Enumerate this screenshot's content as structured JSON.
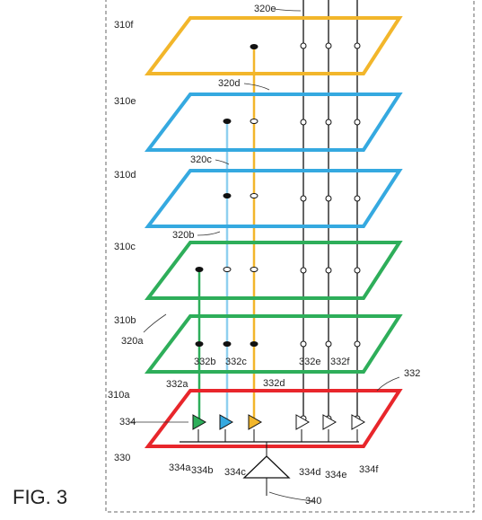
{
  "figure_label": "FIG. 3",
  "planes": [
    "310f",
    "310e",
    "310d",
    "310c",
    "310b",
    "310a"
  ],
  "lines": [
    "320e",
    "320d",
    "320c",
    "320b",
    "320a"
  ],
  "connectors": [
    "332",
    "332a",
    "332b",
    "332c",
    "332d",
    "332e",
    "332f"
  ],
  "amplifiers": [
    "334",
    "334a",
    "334b",
    "334c",
    "334d",
    "334e",
    "334f"
  ],
  "bus": "330",
  "output": "340"
}
